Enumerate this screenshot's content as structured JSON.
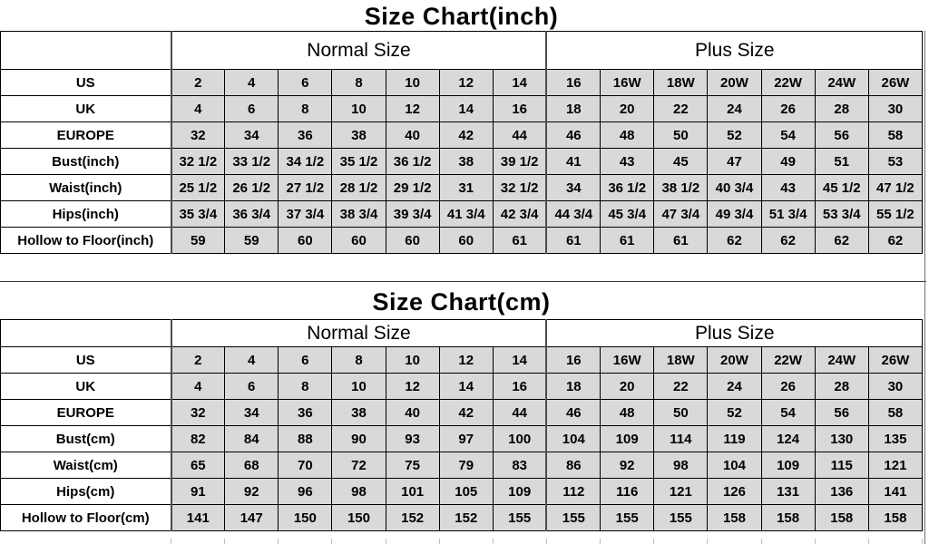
{
  "colors": {
    "cell_fill": "#d9d9d9",
    "grid_line": "#000000",
    "section_separator": "#4d4d4d",
    "text": "#000000",
    "page_bg": "#ffffff"
  },
  "chart_data": [
    {
      "type": "table",
      "title": "Size Chart(inch)",
      "col_groups": [
        {
          "label": "",
          "span": 1
        },
        {
          "label": "Normal Size",
          "span": 7
        },
        {
          "label": "Plus Size",
          "span": 7
        }
      ],
      "rows": [
        {
          "label": "US",
          "values": [
            "2",
            "4",
            "6",
            "8",
            "10",
            "12",
            "14",
            "16",
            "16W",
            "18W",
            "20W",
            "22W",
            "24W",
            "26W"
          ]
        },
        {
          "label": "UK",
          "values": [
            "4",
            "6",
            "8",
            "10",
            "12",
            "14",
            "16",
            "18",
            "20",
            "22",
            "24",
            "26",
            "28",
            "30"
          ]
        },
        {
          "label": "EUROPE",
          "values": [
            "32",
            "34",
            "36",
            "38",
            "40",
            "42",
            "44",
            "46",
            "48",
            "50",
            "52",
            "54",
            "56",
            "58"
          ]
        },
        {
          "label": "Bust(inch)",
          "values": [
            "32 1/2",
            "33 1/2",
            "34 1/2",
            "35 1/2",
            "36 1/2",
            "38",
            "39 1/2",
            "41",
            "43",
            "45",
            "47",
            "49",
            "51",
            "53"
          ]
        },
        {
          "label": "Waist(inch)",
          "values": [
            "25 1/2",
            "26 1/2",
            "27 1/2",
            "28 1/2",
            "29 1/2",
            "31",
            "32 1/2",
            "34",
            "36 1/2",
            "38 1/2",
            "40 3/4",
            "43",
            "45 1/2",
            "47 1/2"
          ]
        },
        {
          "label": "Hips(inch)",
          "values": [
            "35 3/4",
            "36 3/4",
            "37 3/4",
            "38 3/4",
            "39 3/4",
            "41 3/4",
            "42 3/4",
            "44 3/4",
            "45 3/4",
            "47 3/4",
            "49 3/4",
            "51 3/4",
            "53 3/4",
            "55 1/2"
          ]
        },
        {
          "label": "Hollow to Floor(inch)",
          "values": [
            "59",
            "59",
            "60",
            "60",
            "60",
            "60",
            "61",
            "61",
            "61",
            "61",
            "62",
            "62",
            "62",
            "62"
          ]
        }
      ]
    },
    {
      "type": "table",
      "title": "Size Chart(cm)",
      "col_groups": [
        {
          "label": "",
          "span": 1
        },
        {
          "label": "Normal Size",
          "span": 7
        },
        {
          "label": "Plus Size",
          "span": 7
        }
      ],
      "rows": [
        {
          "label": "US",
          "values": [
            "2",
            "4",
            "6",
            "8",
            "10",
            "12",
            "14",
            "16",
            "16W",
            "18W",
            "20W",
            "22W",
            "24W",
            "26W"
          ]
        },
        {
          "label": "UK",
          "values": [
            "4",
            "6",
            "8",
            "10",
            "12",
            "14",
            "16",
            "18",
            "20",
            "22",
            "24",
            "26",
            "28",
            "30"
          ]
        },
        {
          "label": "EUROPE",
          "values": [
            "32",
            "34",
            "36",
            "38",
            "40",
            "42",
            "44",
            "46",
            "48",
            "50",
            "52",
            "54",
            "56",
            "58"
          ]
        },
        {
          "label": "Bust(cm)",
          "values": [
            "82",
            "84",
            "88",
            "90",
            "93",
            "97",
            "100",
            "104",
            "109",
            "114",
            "119",
            "124",
            "130",
            "135"
          ]
        },
        {
          "label": "Waist(cm)",
          "values": [
            "65",
            "68",
            "70",
            "72",
            "75",
            "79",
            "83",
            "86",
            "92",
            "98",
            "104",
            "109",
            "115",
            "121"
          ]
        },
        {
          "label": "Hips(cm)",
          "values": [
            "91",
            "92",
            "96",
            "98",
            "101",
            "105",
            "109",
            "112",
            "116",
            "121",
            "126",
            "131",
            "136",
            "141"
          ]
        },
        {
          "label": "Hollow to Floor(cm)",
          "values": [
            "141",
            "147",
            "150",
            "150",
            "152",
            "152",
            "155",
            "155",
            "155",
            "155",
            "158",
            "158",
            "158",
            "158"
          ]
        }
      ]
    }
  ]
}
